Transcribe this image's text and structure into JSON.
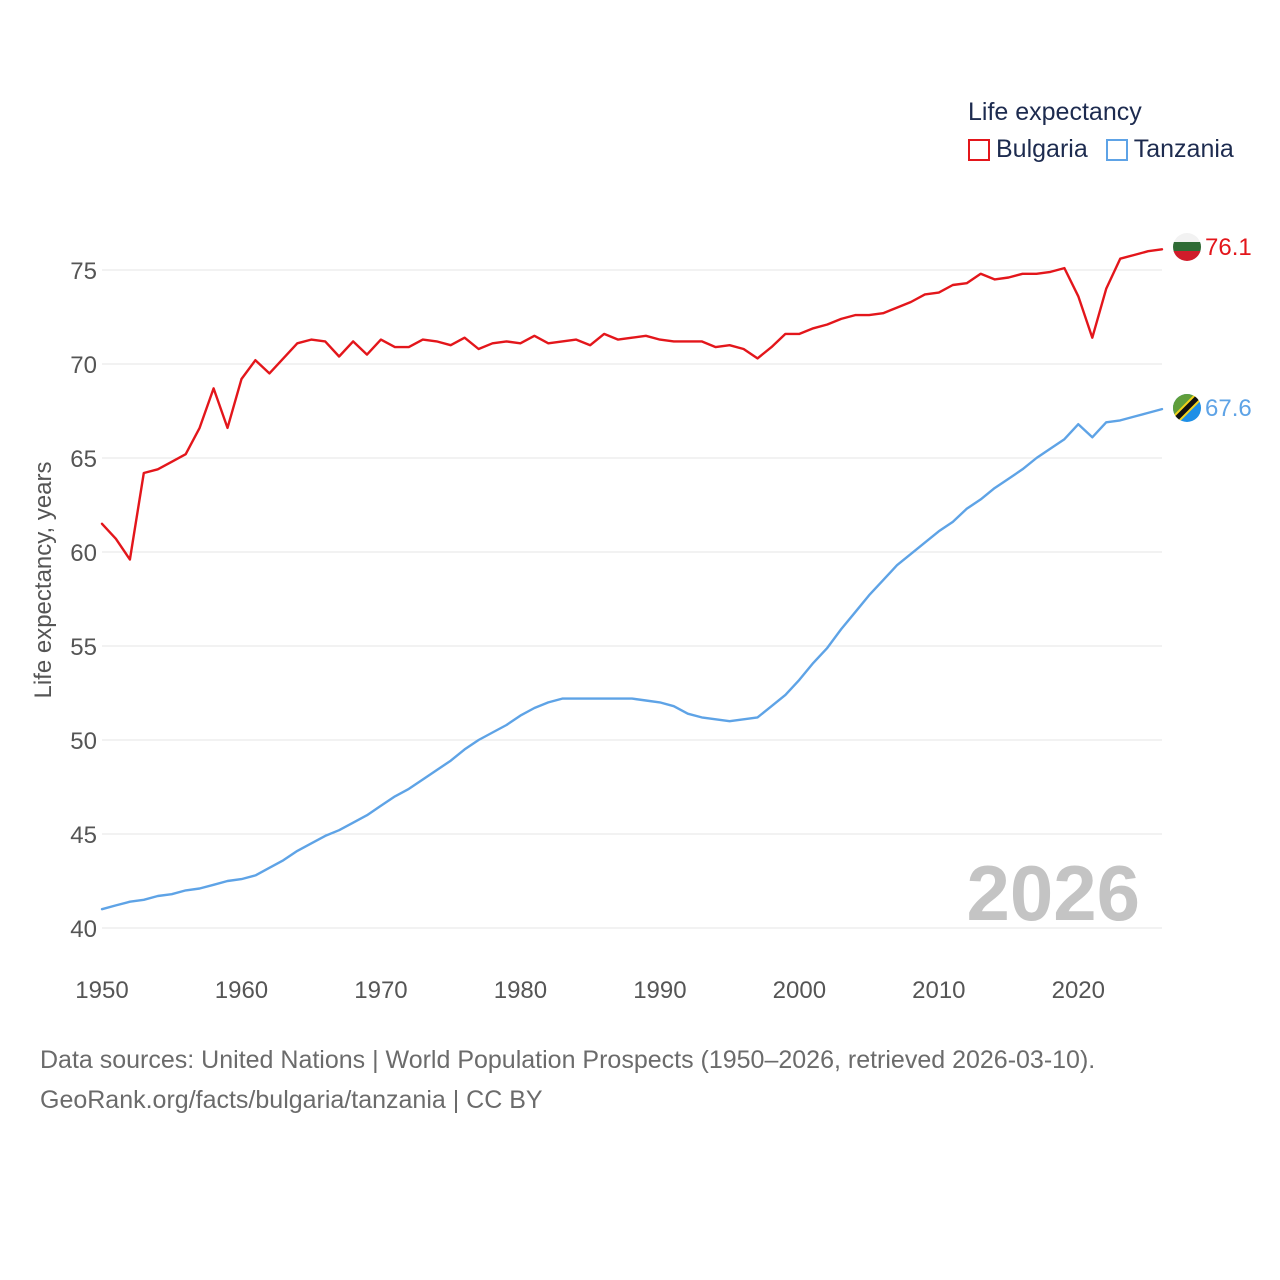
{
  "legend": {
    "title": "Life expectancy",
    "items": [
      {
        "label": "Bulgaria",
        "color": "#e3161b"
      },
      {
        "label": "Tanzania",
        "color": "#5ea3e6"
      }
    ]
  },
  "year_watermark": "2026",
  "source": {
    "line1": "Data sources: United Nations | World Population Prospects (1950–2026, retrieved 2026-03-10).",
    "line2": "GeoRank.org/facts/bulgaria/tanzania | CC BY"
  },
  "end_labels": {
    "bulgaria": "76.1",
    "tanzania": "67.6"
  },
  "colors": {
    "bulgaria": "#e3161b",
    "tanzania": "#5ea3e6",
    "grid": "#e6e6e6",
    "axis_text": "#555555",
    "watermark": "#c4c4c4"
  },
  "chart_data": {
    "type": "line",
    "title": "Life expectancy",
    "xlabel": "",
    "ylabel": "Life expectancy, years",
    "xlim": [
      1950,
      2026
    ],
    "ylim": [
      40,
      77
    ],
    "xticks": [
      1950,
      1960,
      1970,
      1980,
      1990,
      2000,
      2010,
      2020
    ],
    "yticks": [
      40,
      45,
      50,
      55,
      60,
      65,
      70,
      75
    ],
    "series": [
      {
        "name": "Bulgaria",
        "color": "#e3161b",
        "x": [
          1950,
          1951,
          1952,
          1953,
          1954,
          1955,
          1956,
          1957,
          1958,
          1959,
          1960,
          1961,
          1962,
          1963,
          1964,
          1965,
          1966,
          1967,
          1968,
          1969,
          1970,
          1971,
          1972,
          1973,
          1974,
          1975,
          1976,
          1977,
          1978,
          1979,
          1980,
          1981,
          1982,
          1983,
          1984,
          1985,
          1986,
          1987,
          1988,
          1989,
          1990,
          1991,
          1992,
          1993,
          1994,
          1995,
          1996,
          1997,
          1998,
          1999,
          2000,
          2001,
          2002,
          2003,
          2004,
          2005,
          2006,
          2007,
          2008,
          2009,
          2010,
          2011,
          2012,
          2013,
          2014,
          2015,
          2016,
          2017,
          2018,
          2019,
          2020,
          2021,
          2022,
          2023,
          2024,
          2025,
          2026
        ],
        "values": [
          61.5,
          60.7,
          59.6,
          64.2,
          64.4,
          64.8,
          65.2,
          66.6,
          68.7,
          66.6,
          69.2,
          70.2,
          69.5,
          70.3,
          71.1,
          71.3,
          71.2,
          70.4,
          71.2,
          70.5,
          71.3,
          70.9,
          70.9,
          71.3,
          71.2,
          71.0,
          71.4,
          70.8,
          71.1,
          71.2,
          71.1,
          71.5,
          71.1,
          71.2,
          71.3,
          71.0,
          71.6,
          71.3,
          71.4,
          71.5,
          71.3,
          71.2,
          71.2,
          71.2,
          70.9,
          71.0,
          70.8,
          70.3,
          70.9,
          71.6,
          71.6,
          71.9,
          72.1,
          72.4,
          72.6,
          72.6,
          72.7,
          73.0,
          73.3,
          73.7,
          73.8,
          74.2,
          74.3,
          74.8,
          74.5,
          74.6,
          74.8,
          74.8,
          74.9,
          75.1,
          73.6,
          71.4,
          74.0,
          75.6,
          75.8,
          76.0,
          76.1
        ]
      },
      {
        "name": "Tanzania",
        "color": "#5ea3e6",
        "x": [
          1950,
          1951,
          1952,
          1953,
          1954,
          1955,
          1956,
          1957,
          1958,
          1959,
          1960,
          1961,
          1962,
          1963,
          1964,
          1965,
          1966,
          1967,
          1968,
          1969,
          1970,
          1971,
          1972,
          1973,
          1974,
          1975,
          1976,
          1977,
          1978,
          1979,
          1980,
          1981,
          1982,
          1983,
          1984,
          1985,
          1986,
          1987,
          1988,
          1989,
          1990,
          1991,
          1992,
          1993,
          1994,
          1995,
          1996,
          1997,
          1998,
          1999,
          2000,
          2001,
          2002,
          2003,
          2004,
          2005,
          2006,
          2007,
          2008,
          2009,
          2010,
          2011,
          2012,
          2013,
          2014,
          2015,
          2016,
          2017,
          2018,
          2019,
          2020,
          2021,
          2022,
          2023,
          2024,
          2025,
          2026
        ],
        "values": [
          41.0,
          41.2,
          41.4,
          41.5,
          41.7,
          41.8,
          42.0,
          42.1,
          42.3,
          42.5,
          42.6,
          42.8,
          43.2,
          43.6,
          44.1,
          44.5,
          44.9,
          45.2,
          45.6,
          46.0,
          46.5,
          47.0,
          47.4,
          47.9,
          48.4,
          48.9,
          49.5,
          50.0,
          50.4,
          50.8,
          51.3,
          51.7,
          52.0,
          52.2,
          52.2,
          52.2,
          52.2,
          52.2,
          52.2,
          52.1,
          52.0,
          51.8,
          51.4,
          51.2,
          51.1,
          51.0,
          51.1,
          51.2,
          51.8,
          52.4,
          53.2,
          54.1,
          54.9,
          55.9,
          56.8,
          57.7,
          58.5,
          59.3,
          59.9,
          60.5,
          61.1,
          61.6,
          62.3,
          62.8,
          63.4,
          63.9,
          64.4,
          65.0,
          65.5,
          66.0,
          66.8,
          66.1,
          66.9,
          67.0,
          67.2,
          67.4,
          67.6
        ]
      }
    ]
  }
}
